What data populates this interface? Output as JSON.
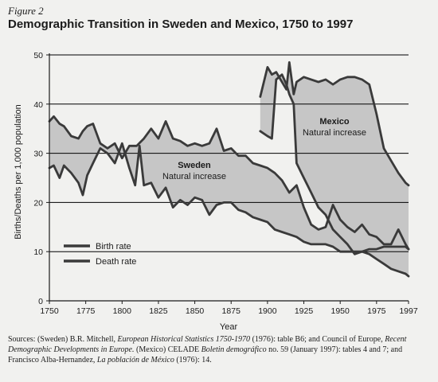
{
  "figure_label": "Figure 2",
  "title": "Demographic Transition in Sweden and Mexico, 1750 to 1997",
  "source": {
    "p1": "Sources: (Sweden) B.R. Mitchell, ",
    "i1": "European Historical Statistics 1750-1970",
    "p2": " (1976): table B6; and Council of Europe, ",
    "i2": "Recent Demographic Developments in Europe.",
    "p3": " (Mexico) CELADE ",
    "i3": "Boletin demográfico",
    "p4": " no. 59 (January 1997): tables 4 and 7; and Francisco Alba-Hernandez, ",
    "i4": "La población de México",
    "p5": " (1976): 14."
  },
  "colors": {
    "line": "#3a3a3a",
    "fill": "#c6c6c6",
    "grid": "#000000",
    "background": "#f1f1ef"
  },
  "chart_data": {
    "type": "line",
    "xlabel": "Year",
    "ylabel": "Births/Deaths per 1,000 population",
    "xlim": [
      1750,
      1997
    ],
    "ylim": [
      0,
      50
    ],
    "x_ticks": [
      "1750",
      "1775",
      "1800",
      "1825",
      "1850",
      "1875",
      "1900",
      "1925",
      "1950",
      "1975",
      "1997"
    ],
    "x_tick_values": [
      1750,
      1775,
      1800,
      1825,
      1850,
      1875,
      1900,
      1925,
      1950,
      1975,
      1997
    ],
    "y_ticks": [
      "0",
      "10",
      "20",
      "30",
      "40",
      "50"
    ],
    "y_tick_values": [
      0,
      10,
      20,
      30,
      40,
      50
    ],
    "grid": "horizontal",
    "legend": {
      "placement": "lower-left",
      "entries": [
        "Birth rate",
        "Death rate"
      ]
    },
    "annotations": [
      {
        "country": "Sweden",
        "text": "Natural increase"
      },
      {
        "country": "Mexico",
        "text": "Natural increase"
      }
    ],
    "series": [
      {
        "name": "Birth rate",
        "country": "Sweden",
        "x": [
          1750,
          1753,
          1757,
          1760,
          1765,
          1770,
          1773,
          1776,
          1780,
          1785,
          1790,
          1795,
          1800,
          1805,
          1810,
          1815,
          1820,
          1825,
          1830,
          1835,
          1840,
          1845,
          1850,
          1855,
          1860,
          1865,
          1870,
          1875,
          1880,
          1885,
          1890,
          1895,
          1900,
          1905,
          1910,
          1915,
          1920,
          1925,
          1930,
          1935,
          1940,
          1945,
          1950,
          1955,
          1960,
          1965,
          1970,
          1975,
          1980,
          1985,
          1990,
          1995,
          1997
        ],
        "y": [
          36.5,
          37.5,
          36,
          35.5,
          33.5,
          33,
          34.5,
          35.5,
          36,
          32,
          31,
          32,
          29,
          31.5,
          31.5,
          33,
          35,
          33,
          36.5,
          33,
          32.5,
          31.5,
          32,
          31.5,
          32,
          35,
          30.5,
          31,
          29.5,
          29.5,
          28,
          27.5,
          27,
          26,
          24.5,
          22,
          23.5,
          19,
          15.5,
          14.5,
          15,
          19.5,
          16.5,
          15,
          14,
          15.5,
          13.5,
          13,
          11.5,
          11.5,
          14.5,
          11.5,
          10.5
        ]
      },
      {
        "name": "Death rate",
        "country": "Sweden",
        "x": [
          1750,
          1753,
          1757,
          1760,
          1765,
          1770,
          1773,
          1776,
          1780,
          1785,
          1790,
          1795,
          1800,
          1805,
          1809,
          1812,
          1815,
          1820,
          1825,
          1830,
          1835,
          1840,
          1845,
          1850,
          1855,
          1860,
          1865,
          1870,
          1875,
          1880,
          1885,
          1890,
          1895,
          1900,
          1905,
          1910,
          1915,
          1920,
          1925,
          1930,
          1935,
          1940,
          1945,
          1950,
          1955,
          1960,
          1965,
          1970,
          1975,
          1980,
          1985,
          1990,
          1995,
          1997
        ],
        "y": [
          27,
          27.5,
          25,
          27.5,
          26,
          24,
          21.5,
          25.5,
          28,
          31,
          30,
          28,
          32,
          27,
          23.5,
          31.5,
          23.5,
          24,
          21,
          23,
          19,
          20.5,
          19.5,
          21,
          20.5,
          17.5,
          19.5,
          20,
          20,
          18.5,
          18,
          17,
          16.5,
          16,
          14.5,
          14,
          13.5,
          13,
          12,
          11.5,
          11.5,
          11.5,
          11,
          10,
          10,
          10,
          10,
          10.5,
          10.5,
          11,
          11,
          11,
          11,
          10.5
        ]
      },
      {
        "name": "Birth rate",
        "country": "Mexico",
        "x": [
          1895,
          1900,
          1903,
          1906,
          1910,
          1913,
          1915,
          1918,
          1920,
          1925,
          1930,
          1935,
          1940,
          1945,
          1950,
          1955,
          1960,
          1965,
          1970,
          1975,
          1980,
          1985,
          1990,
          1995,
          1997
        ],
        "y": [
          41.5,
          47.5,
          46,
          46.5,
          44.5,
          43,
          48.5,
          42,
          44.5,
          45.5,
          45,
          44.5,
          45,
          44,
          45,
          45.5,
          45.5,
          45,
          44,
          38,
          31,
          28.5,
          26,
          24,
          23.5
        ]
      },
      {
        "name": "Death rate",
        "country": "Mexico",
        "x": [
          1895,
          1900,
          1903,
          1906,
          1910,
          1913,
          1915,
          1918,
          1920,
          1925,
          1930,
          1935,
          1940,
          1945,
          1950,
          1955,
          1960,
          1965,
          1970,
          1975,
          1980,
          1985,
          1990,
          1995,
          1997
        ],
        "y": [
          34.5,
          33.5,
          33,
          45,
          46,
          44,
          42,
          40,
          28,
          25,
          22,
          19,
          17.5,
          14.5,
          13,
          11.5,
          9.5,
          10,
          9.5,
          8.5,
          7.5,
          6.5,
          6,
          5.5,
          5
        ]
      }
    ]
  }
}
